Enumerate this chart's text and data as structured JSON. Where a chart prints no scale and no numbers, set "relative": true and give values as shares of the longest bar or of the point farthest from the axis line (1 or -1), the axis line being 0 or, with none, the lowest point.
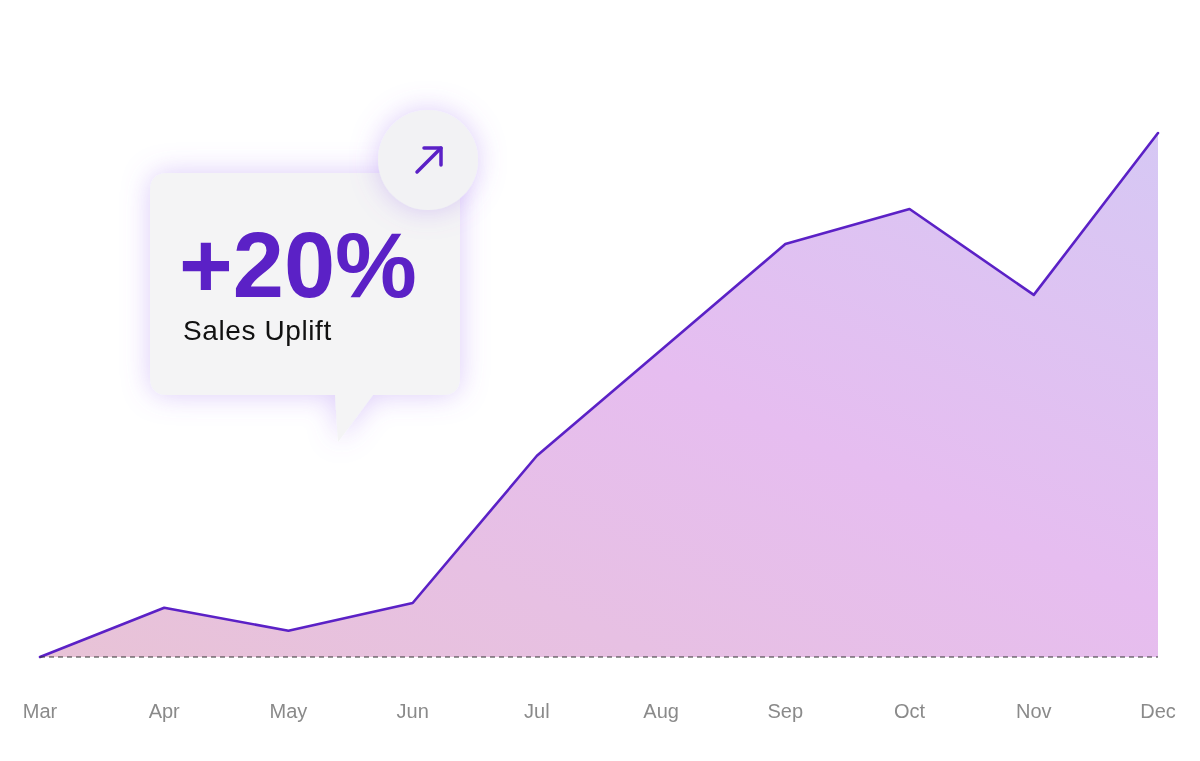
{
  "chart_data": {
    "type": "area",
    "relative": true,
    "categories": [
      "Mar",
      "Apr",
      "May",
      "Jun",
      "Jul",
      "Aug",
      "Sep",
      "Oct",
      "Nov",
      "Dec"
    ],
    "values": [
      0,
      0.094,
      0.05,
      0.103,
      0.384,
      0.586,
      0.788,
      0.855,
      0.691,
      1
    ],
    "color": "#5b21c6",
    "annotations": [
      "+20%",
      "Sales Uplift"
    ]
  }
}
